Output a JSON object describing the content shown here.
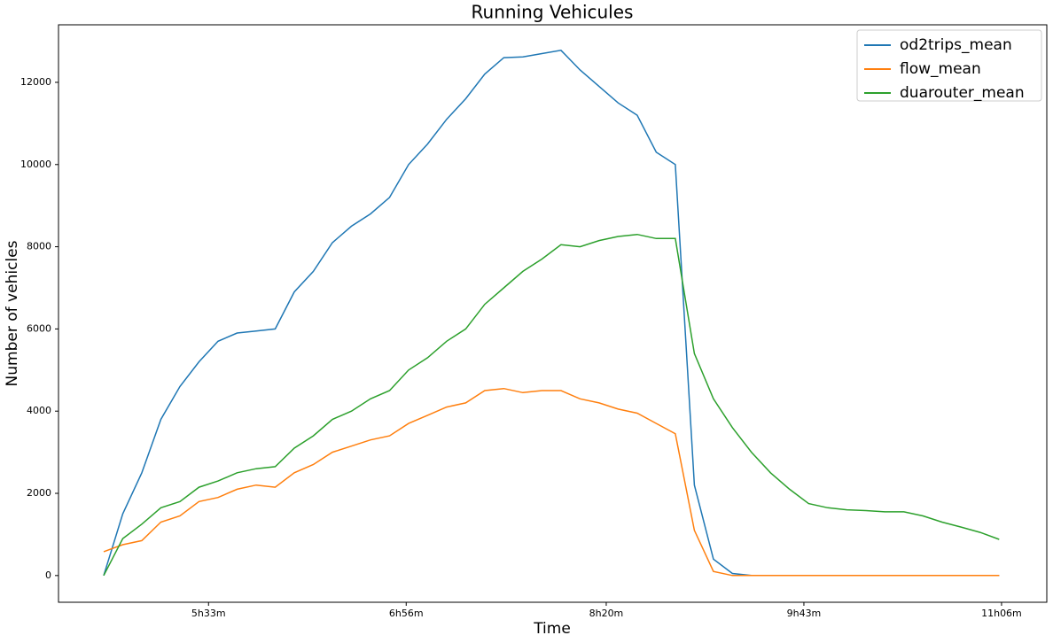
{
  "chart_data": {
    "type": "line",
    "title": "Running Vehicules",
    "x_label": "Time",
    "y_label": "Number of vehicles",
    "x": [
      289,
      297,
      305,
      313,
      321,
      329,
      337,
      345,
      353,
      361,
      369,
      377,
      385,
      393,
      401,
      409,
      417,
      425,
      433,
      441,
      449,
      457,
      465,
      473,
      481,
      489,
      497,
      505,
      513,
      521,
      529,
      537,
      545,
      553,
      561,
      569,
      577,
      585,
      593,
      601,
      609,
      617,
      625,
      633,
      641,
      649,
      657,
      665
    ],
    "series": [
      {
        "name": "od2trips_mean",
        "color": "#1f77b4",
        "values": [
          0,
          1500,
          2500,
          3800,
          4600,
          5200,
          5700,
          5900,
          5950,
          6000,
          6900,
          7400,
          8100,
          8500,
          8800,
          9200,
          10000,
          10500,
          11100,
          11600,
          12200,
          12600,
          12620,
          12700,
          12780,
          12300,
          11900,
          11500,
          11200,
          10300,
          10000,
          2200,
          400,
          50,
          0,
          0,
          0,
          0,
          0,
          0,
          0,
          0,
          0,
          0,
          0,
          0,
          0,
          0
        ]
      },
      {
        "name": "flow_mean",
        "color": "#ff7f0e",
        "values": [
          580,
          750,
          850,
          1300,
          1450,
          1800,
          1900,
          2100,
          2200,
          2150,
          2500,
          2700,
          3000,
          3150,
          3300,
          3400,
          3700,
          3900,
          4100,
          4200,
          4500,
          4550,
          4450,
          4500,
          4500,
          4300,
          4200,
          4050,
          3950,
          3700,
          3450,
          1100,
          100,
          0,
          0,
          0,
          0,
          0,
          0,
          0,
          0,
          0,
          0,
          0,
          0,
          0,
          0,
          0
        ]
      },
      {
        "name": "duarouter_mean",
        "color": "#2ca02c",
        "values": [
          0,
          900,
          1250,
          1650,
          1800,
          2150,
          2300,
          2500,
          2600,
          2650,
          3100,
          3400,
          3800,
          4000,
          4300,
          4500,
          5000,
          5300,
          5700,
          6000,
          6600,
          7000,
          7400,
          7700,
          8050,
          8000,
          8150,
          8250,
          8300,
          8200,
          8200,
          5400,
          4300,
          3600,
          3000,
          2500,
          2100,
          1750,
          1650,
          1600,
          1580,
          1550,
          1550,
          1450,
          1300,
          1180,
          1050,
          880
        ]
      }
    ],
    "xlim": [
      270,
      685
    ],
    "xticks": [
      {
        "value": 333,
        "label": "5h33m"
      },
      {
        "value": 416,
        "label": "6h56m"
      },
      {
        "value": 500,
        "label": "8h20m"
      },
      {
        "value": 583,
        "label": "9h43m"
      },
      {
        "value": 666,
        "label": "11h06m"
      }
    ],
    "ylim": [
      -650,
      13400
    ],
    "yticks": [
      0,
      2000,
      4000,
      6000,
      8000,
      10000,
      12000
    ],
    "grid": false,
    "legend": "upper right"
  }
}
